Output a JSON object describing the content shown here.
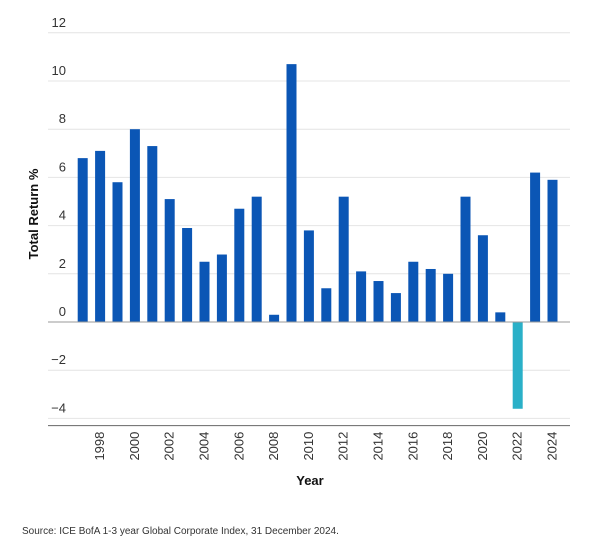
{
  "chart_data": {
    "type": "bar",
    "title": "",
    "xlabel": "Year",
    "ylabel": "Total Return %",
    "ylim": [
      -4.5,
      12
    ],
    "yticks": [
      12,
      10,
      8,
      6,
      4,
      2,
      0,
      -2,
      -4
    ],
    "ytick_labels": [
      "12",
      "10",
      "8",
      "6",
      "4",
      "2",
      "0",
      "−2",
      "−4"
    ],
    "grid": true,
    "categories": [
      "1997",
      "1998",
      "1999",
      "2000",
      "2001",
      "2002",
      "2003",
      "2004",
      "2005",
      "2006",
      "2007",
      "2008",
      "2009",
      "2010",
      "2011",
      "2012",
      "2013",
      "2014",
      "2015",
      "2016",
      "2017",
      "2018",
      "2019",
      "2020",
      "2021",
      "2022",
      "2023",
      "2024"
    ],
    "tick_labels": [
      "",
      "1998",
      "",
      "2000",
      "",
      "2002",
      "",
      "2004",
      "",
      "2006",
      "",
      "2008",
      "",
      "2010",
      "",
      "2012",
      "",
      "2014",
      "",
      "2016",
      "",
      "2018",
      "",
      "2020",
      "",
      "2022",
      "",
      "2024"
    ],
    "values": [
      6.8,
      7.1,
      5.8,
      8.0,
      7.3,
      5.1,
      3.9,
      2.5,
      2.8,
      4.7,
      5.2,
      0.3,
      10.7,
      3.8,
      1.4,
      5.2,
      2.1,
      1.7,
      1.2,
      2.5,
      2.2,
      2.0,
      5.2,
      3.6,
      0.4,
      -3.6,
      6.2,
      5.9
    ],
    "colors": {
      "positive": "#0b56b5",
      "negative": "#2ab0c8",
      "grid": "#e4e4e4",
      "axis": "#999999"
    },
    "source": "Source: ICE BofA 1-3 year Global Corporate Index, 31 December 2024."
  }
}
